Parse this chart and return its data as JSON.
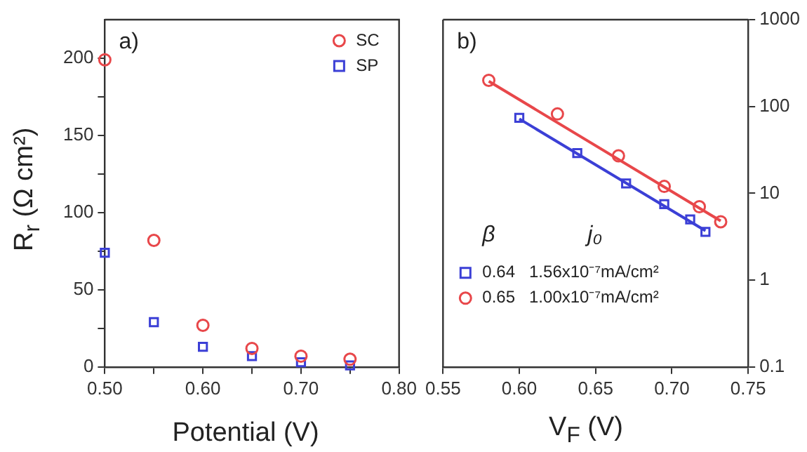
{
  "chart_data": [
    {
      "type": "scatter",
      "xlabel": "Potential (V)",
      "ylabel": "R$_{r}$ (Ω cm²)",
      "annotations": [
        "a)"
      ],
      "xlim": [
        0.5,
        0.8
      ],
      "xticks": [
        {
          "value": 0.5,
          "label": "0.50"
        },
        {
          "value": 0.55,
          "label": null
        },
        {
          "value": 0.6,
          "label": "0.60"
        },
        {
          "value": 0.65,
          "label": null
        },
        {
          "value": 0.7,
          "label": "0.70"
        },
        {
          "value": 0.75,
          "label": null
        },
        {
          "value": 0.8,
          "label": "0.80"
        }
      ],
      "ylim": [
        0,
        225
      ],
      "yticks": [
        0,
        {
          "value": 25,
          "label": null
        },
        50,
        {
          "value": 75,
          "label": null
        },
        100,
        {
          "value": 125,
          "label": null
        },
        150,
        {
          "value": 175,
          "label": null
        },
        200
      ],
      "grid": false,
      "legend": "top right",
      "series": [
        {
          "name": "SC",
          "color": "#e8474a",
          "marker": "circle",
          "x": [
            0.5,
            0.55,
            0.6,
            0.65,
            0.7,
            0.75
          ],
          "values": [
            199,
            82,
            27,
            12,
            7,
            5
          ]
        },
        {
          "name": "SP",
          "color": "#3b3fd6",
          "marker": "square",
          "x": [
            0.5,
            0.55,
            0.6,
            0.65,
            0.7,
            0.75
          ],
          "values": [
            74,
            29,
            13,
            7,
            3,
            1
          ]
        }
      ]
    },
    {
      "type": "scatter",
      "xlabel": "V$_{F}$ (V)",
      "annotations": [
        "b)",
        "β",
        "j₀"
      ],
      "xlim": [
        0.55,
        0.75
      ],
      "xticks": [
        0.55,
        {
          "value": 0.6,
          "label": "0.60"
        },
        0.65,
        {
          "value": 0.7,
          "label": "0.70"
        },
        0.75
      ],
      "y2lim": [
        0.1,
        1000
      ],
      "y2ticks": [
        0.1,
        1,
        10,
        100,
        1000
      ],
      "log": "y2",
      "grid": false,
      "legend": "bottom left",
      "series": [
        {
          "name": "0.64   1.56x10⁻⁷mA/cm²",
          "color": "#3b3fd6",
          "marker": "square",
          "axis": "y2",
          "x": [
            0.6,
            0.638,
            0.67,
            0.695,
            0.712,
            0.722
          ],
          "values": [
            74,
            29,
            13,
            7.5,
            5,
            3.6
          ]
        },
        {
          "name": "0.65   1.00x10⁻⁷mA/cm²",
          "color": "#e8474a",
          "marker": "circle",
          "axis": "y2",
          "x": [
            0.58,
            0.625,
            0.665,
            0.695,
            0.718,
            0.732
          ],
          "values": [
            200,
            82,
            27,
            12,
            7,
            4.7
          ]
        },
        {
          "type": "line",
          "color": "#3b3fd6",
          "axis": "y2",
          "x": [
            0.6,
            0.722
          ],
          "values": [
            72,
            3.7
          ]
        },
        {
          "type": "line",
          "color": "#e8474a",
          "axis": "y2",
          "x": [
            0.58,
            0.732
          ],
          "values": [
            195,
            4.8
          ]
        }
      ]
    }
  ]
}
